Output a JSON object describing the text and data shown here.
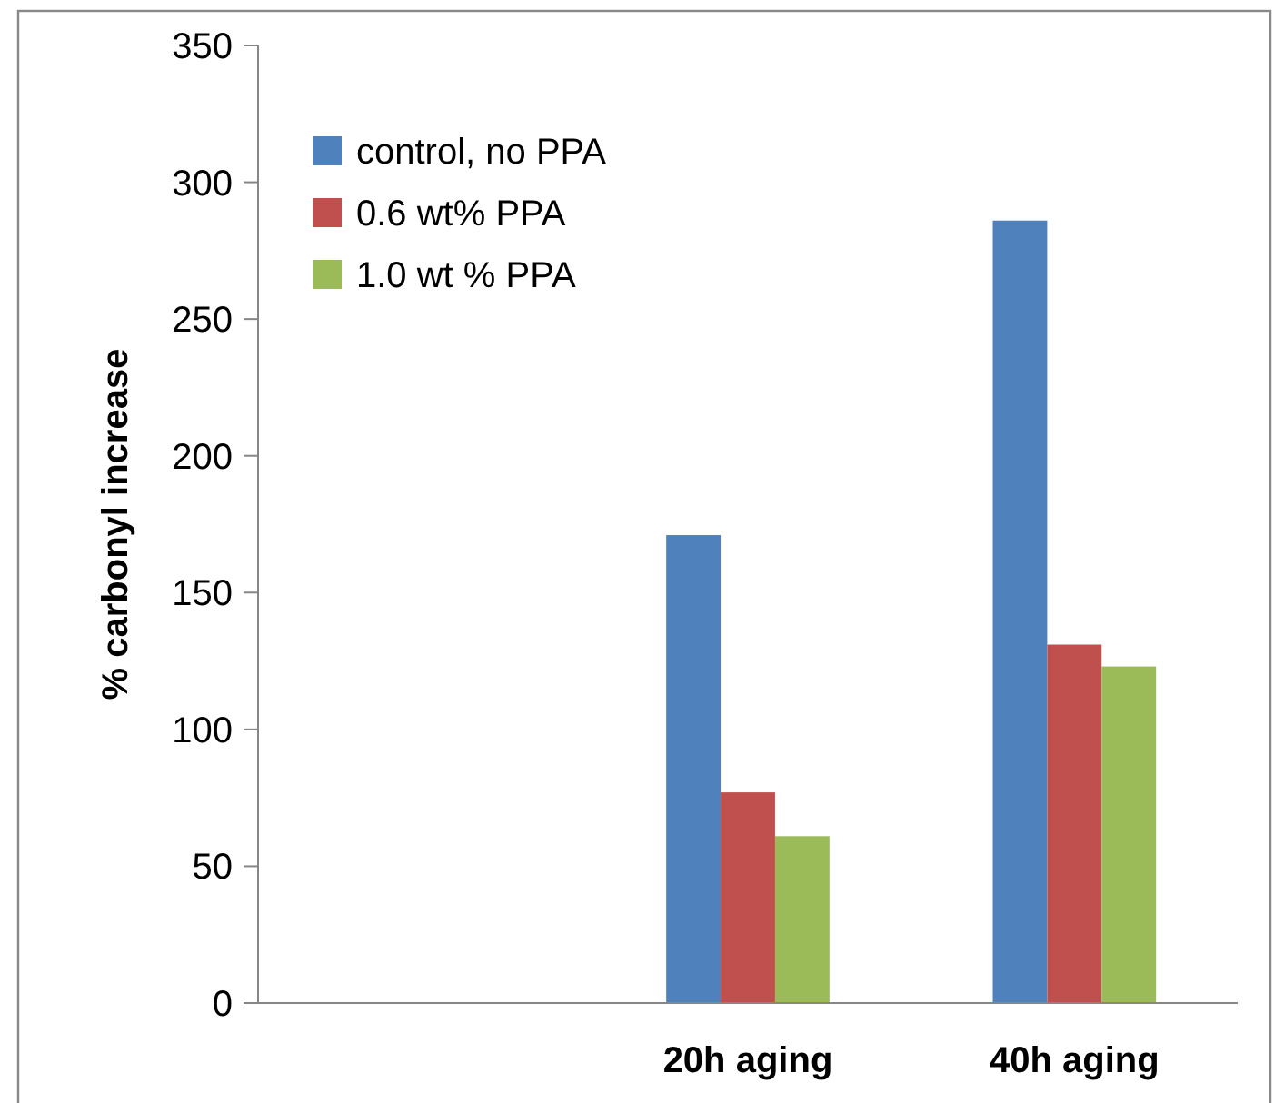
{
  "chart_data": {
    "type": "bar",
    "ylabel": "% carbonyl increase",
    "categories": [
      null,
      "20h aging",
      "40h aging"
    ],
    "series": [
      {
        "name": "control, no PPA",
        "color": "#4f81bd",
        "values": [
          null,
          171,
          286
        ]
      },
      {
        "name": "0.6 wt% PPA",
        "color": "#c0504d",
        "values": [
          null,
          77,
          131
        ]
      },
      {
        "name": "1.0 wt % PPA",
        "color": "#9bbb59",
        "values": [
          null,
          61,
          123
        ]
      }
    ],
    "ylim": [
      0,
      350
    ],
    "yticks": [
      0,
      50,
      100,
      150,
      200,
      250,
      300,
      350
    ],
    "grid": false,
    "legend": "top left"
  }
}
